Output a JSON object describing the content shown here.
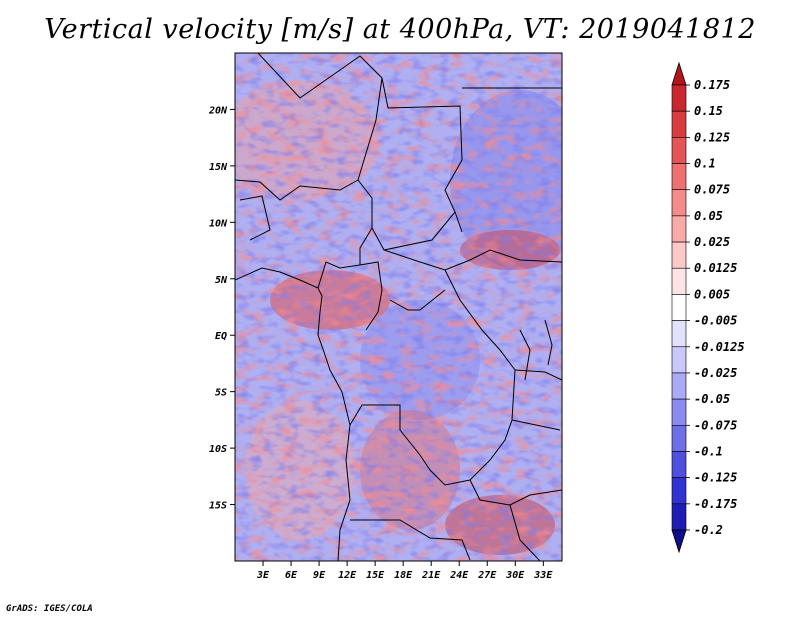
{
  "title": "Vertical velocity [m/s] at 400hPa, VT: 2019041812",
  "credit": "GrADS: IGES/COLA",
  "map": {
    "lon_range": [
      0,
      35
    ],
    "lat_range": [
      -20,
      25
    ],
    "lat_ticks": [
      {
        "label": "20N",
        "value": 20
      },
      {
        "label": "15N",
        "value": 15
      },
      {
        "label": "10N",
        "value": 10
      },
      {
        "label": "5N",
        "value": 5
      },
      {
        "label": "EQ",
        "value": 0
      },
      {
        "label": "5S",
        "value": -5
      },
      {
        "label": "10S",
        "value": -10
      },
      {
        "label": "15S",
        "value": -15
      }
    ],
    "lon_ticks": [
      {
        "label": "3E",
        "value": 3
      },
      {
        "label": "6E",
        "value": 6
      },
      {
        "label": "9E",
        "value": 9
      },
      {
        "label": "12E",
        "value": 12
      },
      {
        "label": "15E",
        "value": 15
      },
      {
        "label": "18E",
        "value": 18
      },
      {
        "label": "21E",
        "value": 21
      },
      {
        "label": "24E",
        "value": 24
      },
      {
        "label": "27E",
        "value": 27
      },
      {
        "label": "30E",
        "value": 30
      },
      {
        "label": "33E",
        "value": 33
      }
    ]
  },
  "colorbar": {
    "levels": [
      "0.175",
      "0.15",
      "0.125",
      "0.1",
      "0.075",
      "0.05",
      "0.025",
      "0.0125",
      "0.005",
      "-0.005",
      "-0.0125",
      "-0.025",
      "-0.05",
      "-0.075",
      "-0.1",
      "-0.125",
      "-0.175",
      "-0.2"
    ],
    "colors": [
      "#b4141e",
      "#c8282d",
      "#d83c3c",
      "#e45656",
      "#ee7070",
      "#f48a8a",
      "#f9aaaa",
      "#fcc8c8",
      "#fde4e4",
      "#ffffff",
      "#e2e2fc",
      "#c8c8fa",
      "#aaaaf5",
      "#8c8cf0",
      "#6e6ee8",
      "#5050de",
      "#3232d2",
      "#1e1eb4",
      "#0f0f8c"
    ]
  }
}
